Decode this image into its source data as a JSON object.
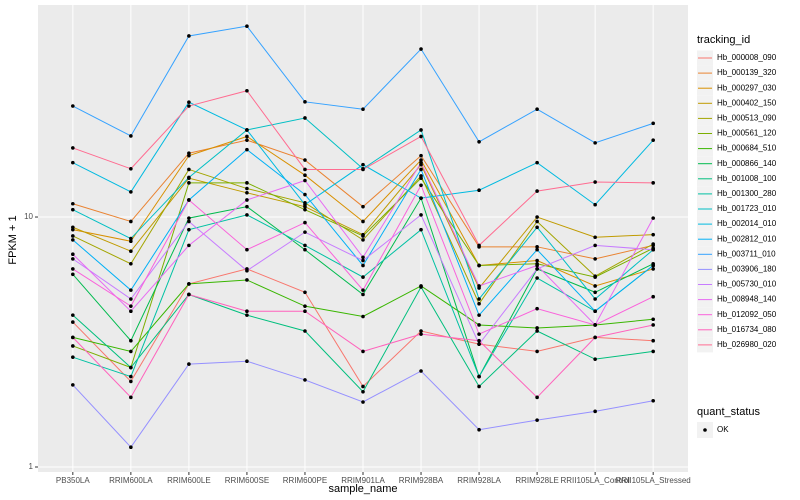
{
  "chart_data": {
    "type": "line",
    "x_label": "sample_name",
    "y_label": "FPKM + 1",
    "log_y": true,
    "grid": true,
    "legend_position": "right",
    "legend_title": "tracking_id",
    "shape_legend_title": "quant_status",
    "shape_legend_labels": [
      "OK"
    ],
    "categories": [
      "PB350LA",
      "RRIM600LA",
      "RRIM600LE",
      "RRIM600SE",
      "RRIM600PE",
      "RRIM901LA",
      "RRIM928BA",
      "RRIM928LA",
      "RRIM928LE",
      "RRII105LA_Control",
      "RRII105LA_Stressed"
    ],
    "ylim": [
      0.955,
      70.5
    ],
    "yticks": [
      1,
      10
    ],
    "series": [
      {
        "name": "Hb_000008_090",
        "color": "#F8766D",
        "values": [
          3.8,
          2.2,
          5.4,
          6.2,
          5.0,
          2.1,
          3.5,
          3.1,
          2.9,
          3.3,
          3.2
        ]
      },
      {
        "name": "Hb_000139_320",
        "color": "#EA8331",
        "values": [
          11.3,
          9.6,
          18.0,
          20.3,
          16.9,
          11.0,
          17.6,
          7.6,
          7.6,
          6.8,
          7.7
        ]
      },
      {
        "name": "Hb_000297_030",
        "color": "#D89000",
        "values": [
          8.9,
          8.0,
          17.6,
          21,
          14.7,
          9.6,
          16.9,
          6.4,
          6.7,
          5.3,
          6.2
        ]
      },
      {
        "name": "Hb_000402_150",
        "color": "#C09B00",
        "values": [
          9.1,
          7.3,
          14.3,
          12.5,
          11.0,
          8.5,
          16.2,
          5.2,
          10,
          8.3,
          8.5
        ]
      },
      {
        "name": "Hb_000513_090",
        "color": "#A3A500",
        "values": [
          8.4,
          6.5,
          15.5,
          13.0,
          11.4,
          8.1,
          14.6,
          4.5,
          9.6,
          5.8,
          7.8
        ]
      },
      {
        "name": "Hb_000561_120",
        "color": "#7CAE00",
        "values": [
          3.05,
          2.5,
          13.7,
          13.7,
          10.7,
          8.4,
          14.3,
          6.4,
          6.5,
          5.75,
          7.5
        ]
      },
      {
        "name": "Hb_000684_510",
        "color": "#39B600",
        "values": [
          3.3,
          2.9,
          5.4,
          5.6,
          4.4,
          4.0,
          5.3,
          3.7,
          3.6,
          3.7,
          3.9
        ]
      },
      {
        "name": "Hb_000866_140",
        "color": "#00BB4E",
        "values": [
          5.9,
          3.2,
          9.9,
          11.0,
          7.4,
          4.9,
          11.9,
          2.3,
          6.2,
          5.0,
          6.5
        ]
      },
      {
        "name": "Hb_001008_100",
        "color": "#00BF7D",
        "values": [
          4.05,
          2.5,
          4.9,
          4.05,
          3.5,
          2.0,
          5.25,
          2.1,
          3.5,
          2.7,
          2.9
        ]
      },
      {
        "name": "Hb_001300_280",
        "color": "#00C1A3",
        "values": [
          2.75,
          2.3,
          8.9,
          10.2,
          7.7,
          5.75,
          8.9,
          2.3,
          5.7,
          4.2,
          6.4
        ]
      },
      {
        "name": "Hb_001723_010",
        "color": "#00BFC4",
        "values": [
          10.7,
          8.2,
          14.4,
          22.3,
          24.9,
          15.6,
          22.3,
          4.7,
          9.1,
          4.7,
          7.4
        ]
      },
      {
        "name": "Hb_002014_010",
        "color": "#00BAE0",
        "values": [
          16.5,
          12.6,
          28.8,
          22.3,
          11.2,
          16.2,
          11.9,
          12.8,
          16.5,
          11.2,
          20.3
        ]
      },
      {
        "name": "Hb_002812_010",
        "color": "#00B0F6",
        "values": [
          8.1,
          5.1,
          11.7,
          18.6,
          12.3,
          6.4,
          15.5,
          4.05,
          7.4,
          4.2,
          6.4
        ]
      },
      {
        "name": "Hb_003711_010",
        "color": "#35A2FF",
        "values": [
          27.8,
          21.1,
          53,
          58,
          28.9,
          27,
          47,
          20,
          27,
          19.8,
          23.7
        ]
      },
      {
        "name": "Hb_003906_180",
        "color": "#9590FF",
        "values": [
          2.13,
          1.2,
          2.58,
          2.65,
          2.23,
          1.82,
          2.42,
          1.41,
          1.54,
          1.67,
          1.84
        ]
      },
      {
        "name": "Hb_005730_010",
        "color": "#C77CFF",
        "values": [
          6.8,
          4.7,
          9.6,
          6.1,
          8.7,
          6.7,
          10.2,
          3.1,
          6.2,
          7.7,
          7.4
        ]
      },
      {
        "name": "Hb_008948_140",
        "color": "#E76BF3",
        "values": [
          7.1,
          4.2,
          7.7,
          11.7,
          14.0,
          6.9,
          16.5,
          5.3,
          6.4,
          3.7,
          9.9
        ]
      },
      {
        "name": "Hb_012092_050",
        "color": "#FA62DB",
        "values": [
          6.2,
          4.4,
          11.7,
          7.4,
          9.5,
          5.1,
          13.4,
          3.4,
          4.3,
          3.7,
          4.8
        ]
      },
      {
        "name": "Hb_016734_080",
        "color": "#FF62BC",
        "values": [
          3.3,
          1.9,
          4.9,
          4.2,
          4.2,
          2.9,
          3.4,
          3.2,
          1.9,
          3.3,
          3.7
        ]
      },
      {
        "name": "Hb_026980_020",
        "color": "#FF6C91",
        "values": [
          18.9,
          15.6,
          27.8,
          32,
          15.5,
          15.5,
          21,
          7.7,
          12.7,
          13.8,
          13.7
        ]
      }
    ]
  }
}
